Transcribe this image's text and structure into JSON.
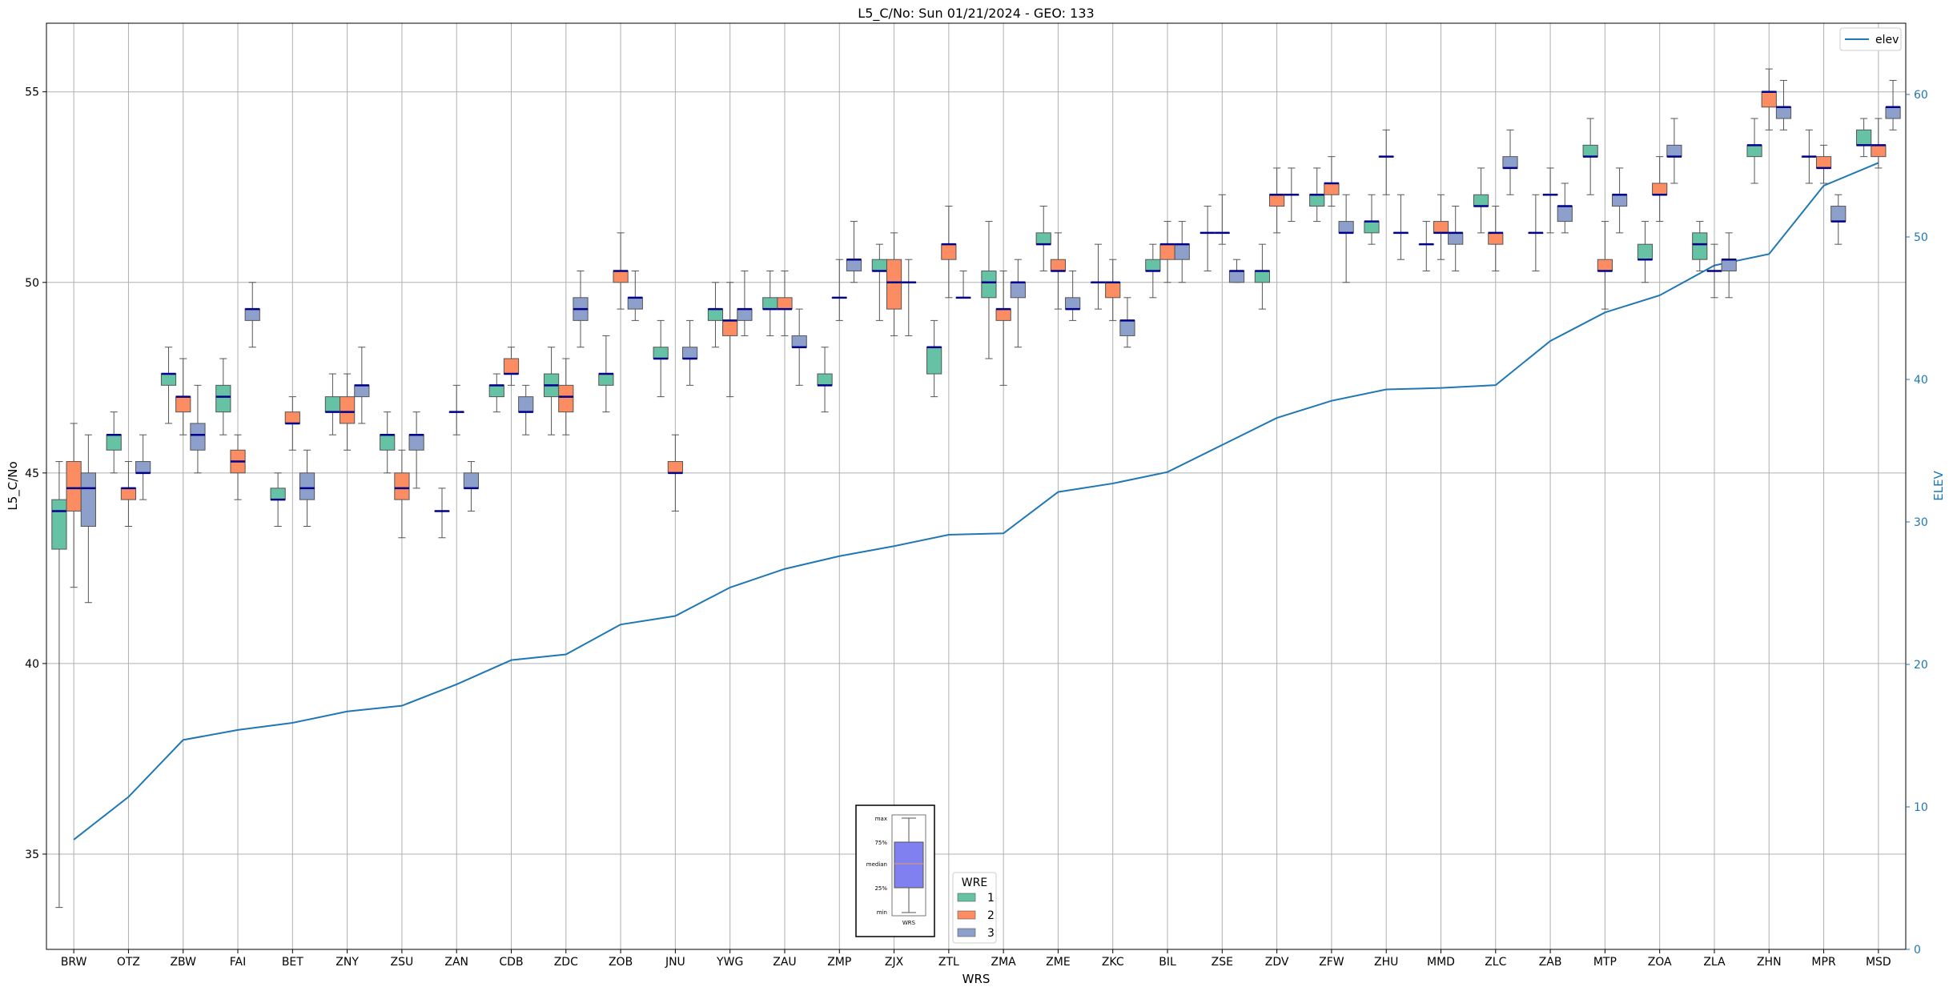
{
  "chart_data": {
    "type": "box",
    "title": "L5_C/No: Sun 01/21/2024 - GEO: 133",
    "xlabel": "WRS",
    "ylabel": "L5_C/No",
    "y2label": "ELEV",
    "ylim": [
      32.5,
      56.8
    ],
    "y2lim": [
      0,
      65
    ],
    "yticks": [
      35,
      40,
      45,
      50,
      55
    ],
    "y2ticks": [
      0,
      10,
      20,
      30,
      40,
      50,
      60
    ],
    "grid": true,
    "categories": [
      "BRW",
      "OTZ",
      "ZBW",
      "FAI",
      "BET",
      "ZNY",
      "ZSU",
      "ZAN",
      "CDB",
      "ZDC",
      "ZOB",
      "JNU",
      "YWG",
      "ZAU",
      "ZMP",
      "ZJX",
      "ZTL",
      "ZMA",
      "ZME",
      "ZKC",
      "BIL",
      "ZSE",
      "ZDV",
      "ZFW",
      "ZHU",
      "MMD",
      "ZLC",
      "ZAB",
      "MTP",
      "ZOA",
      "ZLA",
      "ZHN",
      "MPR",
      "MSD"
    ],
    "hue_title": "WRE",
    "hue_levels": [
      {
        "name": "1",
        "color": "#66c2a5"
      },
      {
        "name": "2",
        "color": "#fc8d62"
      },
      {
        "name": "3",
        "color": "#8da0cb"
      }
    ],
    "line_series": {
      "name": "elev",
      "color": "#1f77b4",
      "values": [
        7.7,
        10.7,
        14.7,
        15.4,
        15.9,
        16.7,
        17.1,
        18.6,
        20.3,
        20.7,
        22.8,
        23.4,
        25.4,
        26.7,
        27.6,
        28.3,
        29.1,
        29.2,
        32.1,
        32.7,
        33.5,
        35.4,
        37.3,
        38.5,
        39.3,
        39.4,
        39.6,
        42.7,
        44.7,
        45.9,
        48.0,
        48.8,
        53.6,
        55.2
      ]
    },
    "legend_line": {
      "label": "elev",
      "position": "upper right"
    },
    "legend_hue": {
      "position": "lower center"
    },
    "inset_key": {
      "labels": [
        "max",
        "75%",
        "median",
        "25%",
        "min"
      ],
      "xlabel": "WRS"
    },
    "boxes": [
      [
        [
          33.6,
          43.0,
          44.0,
          44.3,
          45.3
        ],
        [
          42.0,
          44.0,
          44.6,
          45.3,
          46.3
        ],
        [
          41.6,
          43.6,
          44.6,
          45.0,
          46.0
        ]
      ],
      [
        [
          45.0,
          45.6,
          46.0,
          46.0,
          46.6
        ],
        [
          43.6,
          44.3,
          44.6,
          44.6,
          45.3
        ],
        [
          44.3,
          45.0,
          45.0,
          45.3,
          46.0
        ]
      ],
      [
        [
          46.3,
          47.3,
          47.6,
          47.6,
          48.3
        ],
        [
          46.0,
          46.6,
          47.0,
          47.0,
          48.0
        ],
        [
          45.0,
          45.6,
          46.0,
          46.3,
          47.3
        ]
      ],
      [
        [
          46.0,
          46.6,
          47.0,
          47.3,
          48.0
        ],
        [
          44.3,
          45.0,
          45.3,
          45.6,
          46.0
        ],
        [
          48.3,
          49.0,
          49.3,
          49.3,
          50.0
        ]
      ],
      [
        [
          43.6,
          44.3,
          44.3,
          44.6,
          45.0
        ],
        [
          45.6,
          46.3,
          46.3,
          46.6,
          47.0
        ],
        [
          43.6,
          44.3,
          44.6,
          45.0,
          45.6
        ]
      ],
      [
        [
          46.0,
          46.6,
          46.6,
          47.0,
          47.6
        ],
        [
          45.6,
          46.3,
          46.6,
          47.0,
          47.6
        ],
        [
          46.3,
          47.0,
          47.3,
          47.3,
          48.3
        ]
      ],
      [
        [
          45.0,
          45.6,
          46.0,
          46.0,
          46.6
        ],
        [
          43.3,
          44.3,
          44.6,
          45.0,
          45.6
        ],
        [
          44.6,
          45.6,
          46.0,
          46.0,
          46.6
        ]
      ],
      [
        [
          43.3,
          44.0,
          44.0,
          44.0,
          44.6
        ],
        [
          46.0,
          46.6,
          46.6,
          46.6,
          47.3
        ],
        [
          44.0,
          44.6,
          44.6,
          45.0,
          45.3
        ]
      ],
      [
        [
          46.6,
          47.0,
          47.3,
          47.3,
          47.6
        ],
        [
          47.3,
          47.6,
          47.6,
          48.0,
          48.3
        ],
        [
          46.0,
          46.6,
          46.6,
          47.0,
          47.3
        ]
      ],
      [
        [
          46.0,
          47.0,
          47.3,
          47.6,
          48.3
        ],
        [
          46.0,
          46.6,
          47.0,
          47.3,
          48.0
        ],
        [
          48.3,
          49.0,
          49.3,
          49.6,
          50.3
        ]
      ],
      [
        [
          46.6,
          47.3,
          47.6,
          47.6,
          48.6
        ],
        [
          49.3,
          50.0,
          50.3,
          50.3,
          51.3
        ],
        [
          49.0,
          49.3,
          49.6,
          49.6,
          50.3
        ]
      ],
      [
        [
          47.0,
          48.0,
          48.0,
          48.3,
          49.0
        ],
        [
          44.0,
          45.0,
          45.0,
          45.3,
          46.0
        ],
        [
          47.3,
          48.0,
          48.0,
          48.3,
          49.0
        ]
      ],
      [
        [
          48.3,
          49.0,
          49.3,
          49.3,
          50.0
        ],
        [
          47.0,
          48.6,
          49.0,
          49.0,
          50.0
        ],
        [
          48.6,
          49.0,
          49.3,
          49.3,
          50.3
        ]
      ],
      [
        [
          48.6,
          49.3,
          49.3,
          49.6,
          50.3
        ],
        [
          48.6,
          49.3,
          49.3,
          49.6,
          50.3
        ],
        [
          47.3,
          48.3,
          48.3,
          48.6,
          49.3
        ]
      ],
      [
        [
          46.6,
          47.3,
          47.3,
          47.6,
          48.3
        ],
        [
          49.0,
          49.6,
          49.6,
          49.6,
          50.6
        ],
        [
          50.0,
          50.3,
          50.6,
          50.6,
          51.6
        ]
      ],
      [
        [
          49.0,
          50.3,
          50.3,
          50.6,
          51.0
        ],
        [
          48.6,
          49.3,
          50.0,
          50.6,
          51.3
        ],
        [
          48.6,
          50.0,
          50.0,
          50.0,
          50.6
        ]
      ],
      [
        [
          47.0,
          47.6,
          48.3,
          48.3,
          49.0
        ],
        [
          49.6,
          50.6,
          51.0,
          51.0,
          52.0
        ],
        [
          49.6,
          49.6,
          49.6,
          49.6,
          50.3
        ]
      ],
      [
        [
          48.0,
          49.6,
          50.0,
          50.3,
          51.6
        ],
        [
          47.3,
          49.0,
          49.3,
          49.3,
          50.3
        ],
        [
          48.3,
          49.6,
          50.0,
          50.0,
          50.6
        ]
      ],
      [
        [
          50.3,
          51.0,
          51.0,
          51.3,
          52.0
        ],
        [
          49.3,
          50.3,
          50.3,
          50.6,
          51.3
        ],
        [
          49.0,
          49.3,
          49.3,
          49.6,
          50.3
        ]
      ],
      [
        [
          49.3,
          50.0,
          50.0,
          50.0,
          51.0
        ],
        [
          49.0,
          49.6,
          50.0,
          50.0,
          50.6
        ],
        [
          48.3,
          48.6,
          49.0,
          49.0,
          49.6
        ]
      ],
      [
        [
          49.6,
          50.3,
          50.3,
          50.6,
          51.0
        ],
        [
          50.0,
          50.6,
          51.0,
          51.0,
          51.6
        ],
        [
          50.0,
          50.6,
          51.0,
          51.0,
          51.6
        ]
      ],
      [
        [
          50.3,
          51.3,
          51.3,
          51.3,
          52.0
        ],
        [
          51.0,
          51.3,
          51.3,
          51.3,
          52.3
        ],
        [
          50.0,
          50.0,
          50.3,
          50.3,
          50.6
        ]
      ],
      [
        [
          49.3,
          50.0,
          50.3,
          50.3,
          51.0
        ],
        [
          51.3,
          52.0,
          52.3,
          52.3,
          53.0
        ],
        [
          51.6,
          52.3,
          52.3,
          52.3,
          53.0
        ]
      ],
      [
        [
          51.6,
          52.0,
          52.3,
          52.3,
          53.0
        ],
        [
          52.0,
          52.3,
          52.6,
          52.6,
          53.3
        ],
        [
          50.0,
          51.3,
          51.3,
          51.6,
          52.3
        ]
      ],
      [
        [
          51.0,
          51.3,
          51.6,
          51.6,
          52.3
        ],
        [
          52.3,
          53.3,
          53.3,
          53.3,
          54.0
        ],
        [
          50.6,
          51.3,
          51.3,
          51.3,
          52.3
        ]
      ],
      [
        [
          50.3,
          51.0,
          51.0,
          51.0,
          51.6
        ],
        [
          50.6,
          51.3,
          51.3,
          51.6,
          52.3
        ],
        [
          50.3,
          51.0,
          51.3,
          51.3,
          52.0
        ]
      ],
      [
        [
          51.3,
          52.0,
          52.0,
          52.3,
          53.0
        ],
        [
          50.3,
          51.0,
          51.3,
          51.3,
          52.0
        ],
        [
          52.3,
          53.0,
          53.0,
          53.3,
          54.0
        ]
      ],
      [
        [
          50.3,
          51.3,
          51.3,
          51.3,
          52.3
        ],
        [
          51.3,
          52.3,
          52.3,
          52.3,
          53.0
        ],
        [
          51.3,
          51.6,
          52.0,
          52.0,
          52.6
        ]
      ],
      [
        [
          52.3,
          53.3,
          53.3,
          53.6,
          54.3
        ],
        [
          49.3,
          50.3,
          50.3,
          50.6,
          51.6
        ],
        [
          51.3,
          52.0,
          52.3,
          52.3,
          53.0
        ]
      ],
      [
        [
          50.0,
          50.6,
          50.6,
          51.0,
          51.6
        ],
        [
          51.6,
          52.3,
          52.3,
          52.6,
          53.3
        ],
        [
          52.6,
          53.3,
          53.3,
          53.6,
          54.3
        ]
      ],
      [
        [
          50.3,
          50.6,
          51.0,
          51.3,
          51.6
        ],
        [
          49.6,
          50.3,
          50.3,
          50.3,
          51.0
        ],
        [
          49.6,
          50.3,
          50.6,
          50.6,
          51.3
        ]
      ],
      [
        [
          52.6,
          53.3,
          53.6,
          53.6,
          54.3
        ],
        [
          54.0,
          54.6,
          55.0,
          55.0,
          55.6
        ],
        [
          54.0,
          54.3,
          54.6,
          54.6,
          55.3
        ]
      ],
      [
        [
          52.6,
          53.3,
          53.3,
          53.3,
          54.0
        ],
        [
          52.6,
          53.0,
          53.0,
          53.3,
          53.6
        ],
        [
          51.0,
          51.6,
          51.6,
          52.0,
          52.3
        ]
      ],
      [
        [
          53.3,
          53.6,
          53.6,
          54.0,
          54.3
        ],
        [
          53.0,
          53.3,
          53.6,
          53.6,
          54.3
        ],
        [
          54.0,
          54.3,
          54.6,
          54.6,
          55.3
        ]
      ]
    ]
  }
}
